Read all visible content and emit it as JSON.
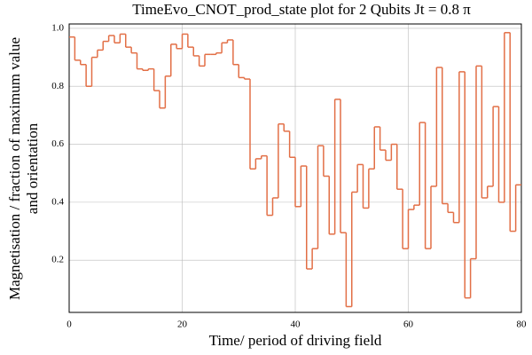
{
  "chart_data": {
    "type": "step",
    "title": "TimeEvo_CNOT_prod_state plot for 2 Qubits Jt = 0.8 π",
    "xlabel": "Time/ period of driving field",
    "ylabel": [
      "Magnetisation / fraction of maximum value",
      "and orientation"
    ],
    "x": [
      0,
      1,
      2,
      3,
      4,
      5,
      6,
      7,
      8,
      9,
      10,
      11,
      12,
      13,
      14,
      15,
      16,
      17,
      18,
      19,
      20,
      21,
      22,
      23,
      24,
      25,
      26,
      27,
      28,
      29,
      30,
      31,
      32,
      33,
      34,
      35,
      36,
      37,
      38,
      39,
      40,
      41,
      42,
      43,
      44,
      45,
      46,
      47,
      48,
      49,
      50,
      51,
      52,
      53,
      54,
      55,
      56,
      57,
      58,
      59,
      60,
      61,
      62,
      63,
      64,
      65,
      66,
      67,
      68,
      69,
      70,
      71,
      72,
      73,
      74,
      75,
      76,
      77,
      78,
      79
    ],
    "series": [
      {
        "color": "#e26f46",
        "values": [
          0.97,
          0.89,
          0.875,
          0.8,
          0.9,
          0.925,
          0.955,
          0.975,
          0.95,
          0.98,
          0.935,
          0.915,
          0.86,
          0.855,
          0.86,
          0.785,
          0.725,
          0.835,
          0.945,
          0.93,
          0.98,
          0.935,
          0.905,
          0.87,
          0.91,
          0.91,
          0.915,
          0.95,
          0.96,
          0.875,
          0.83,
          0.825,
          0.515,
          0.55,
          0.56,
          0.355,
          0.415,
          0.67,
          0.645,
          0.555,
          0.385,
          0.525,
          0.17,
          0.24,
          0.595,
          0.49,
          0.29,
          0.755,
          0.295,
          0.04,
          0.435,
          0.53,
          0.38,
          0.515,
          0.66,
          0.58,
          0.545,
          0.6,
          0.445,
          0.24,
          0.375,
          0.39,
          0.675,
          0.24,
          0.455,
          0.865,
          0.395,
          0.365,
          0.33,
          0.85,
          0.07,
          0.205,
          0.87,
          0.415,
          0.455,
          0.73,
          0.4,
          0.985,
          0.3,
          0.46
        ]
      }
    ],
    "xlim": [
      0,
      80
    ],
    "ylim": [
      0.02,
      1.015
    ],
    "xticks": [
      0,
      20,
      40,
      60,
      80
    ],
    "yticks": [
      0.2,
      0.4,
      0.6,
      0.8,
      {
        "value": 1,
        "label": "1.0"
      }
    ],
    "grid": true
  }
}
